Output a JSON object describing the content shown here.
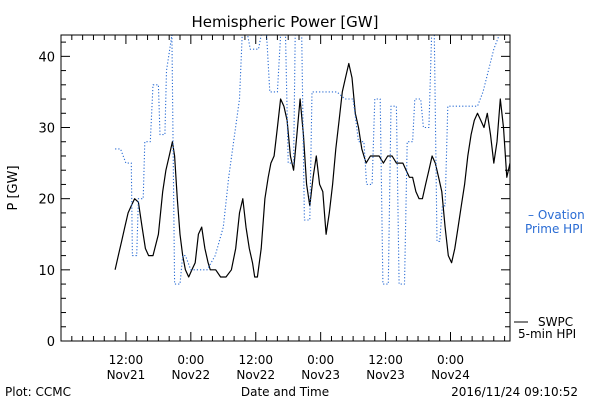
{
  "chart_data": {
    "type": "line",
    "title": "Hemispheric Power [GW]",
    "ylabel": "P [GW]",
    "xlabel": "Date and Time",
    "ylim": [
      0,
      43
    ],
    "yticks": [
      0,
      10,
      20,
      30,
      40
    ],
    "xlim_hours": [
      0,
      83
    ],
    "xticks": [
      {
        "hour": 12,
        "time": "12:00",
        "date": "Nov21"
      },
      {
        "hour": 24,
        "time": "0:00",
        "date": "Nov22"
      },
      {
        "hour": 36,
        "time": "12:00",
        "date": "Nov22"
      },
      {
        "hour": 48,
        "time": "0:00",
        "date": "Nov23"
      },
      {
        "hour": 60,
        "time": "12:00",
        "date": "Nov23"
      },
      {
        "hour": 72,
        "time": "0:00",
        "date": "Nov24"
      }
    ],
    "series": [
      {
        "name": "SWPC 5-min HPI",
        "legend": [
          "SWPC",
          "5-min HPI"
        ],
        "color": "#000000",
        "style": "solid",
        "x": [
          10,
          10.6,
          11.2,
          11.8,
          12.4,
          13,
          13.6,
          14.3,
          15,
          15.6,
          16.2,
          17,
          18,
          18.8,
          19.4,
          20,
          20.6,
          21,
          21.5,
          22,
          22.5,
          23,
          23.6,
          24.2,
          24.8,
          25.4,
          26,
          26.6,
          27.2,
          27.6,
          28,
          28.6,
          29.5,
          30.5,
          31.5,
          32.3,
          33,
          33.6,
          34.2,
          34.8,
          35.4,
          35.8,
          36.3,
          37,
          37.7,
          38.3,
          38.8,
          39.4,
          40,
          40.6,
          41.2,
          41.8,
          42.4,
          43,
          43.6,
          44.2,
          44.8,
          45.4,
          46,
          46.6,
          47.2,
          47.8,
          48.4,
          49,
          49.6,
          50.2,
          50.8,
          51.4,
          52,
          52.6,
          53.2,
          53.8,
          54.4,
          55,
          55.6,
          56.4,
          57.2,
          58,
          58.8,
          59.6,
          60.4,
          61.2,
          62,
          62.6,
          63.2,
          63.8,
          64.4,
          65,
          65.6,
          66.2,
          66.8,
          67.4,
          68,
          68.6,
          69.2,
          69.8,
          70.4,
          71,
          71.6,
          72.2,
          72.8,
          73.4,
          74,
          74.6,
          75.2,
          75.8,
          76.4,
          77,
          77.6,
          78.2,
          78.8,
          79.4,
          80,
          80.6,
          81.2,
          81.8,
          82.4,
          83
        ],
        "y": [
          10,
          12,
          14,
          16,
          18,
          19,
          20,
          19.5,
          16,
          13,
          12,
          12,
          15,
          21,
          24,
          26,
          28,
          26,
          20,
          15,
          12,
          10,
          9,
          10,
          11,
          15,
          16,
          13,
          11,
          10,
          10,
          10,
          9,
          9,
          10,
          13,
          18,
          20,
          16,
          13,
          11,
          9,
          9,
          13,
          20,
          23,
          25,
          26,
          30,
          34,
          33,
          31,
          26,
          24,
          29,
          34,
          29,
          22,
          19,
          23,
          26,
          22,
          21,
          15,
          18,
          22,
          27,
          31,
          35,
          37,
          39,
          37,
          32,
          30,
          27,
          25,
          26,
          26,
          26,
          25,
          26,
          26,
          25,
          25,
          25,
          24,
          23,
          23,
          21,
          20,
          20,
          22,
          24,
          26,
          25,
          23,
          21,
          16,
          12,
          11,
          13,
          16,
          19,
          22,
          26,
          29,
          31,
          32,
          31,
          30,
          32,
          29,
          25,
          28,
          34,
          30,
          23,
          25
        ],
        "y_clip": [
          [
            21.5,
            28
          ]
        ]
      },
      {
        "name": "Ovation Prime HPI",
        "legend": [
          "– Ovation",
          "Prime HPI"
        ],
        "color": "#2a6cd4",
        "style": "dotted",
        "x": [
          10,
          11,
          11.5,
          12,
          13,
          13.2,
          14,
          14.3,
          15.2,
          15.5,
          16.5,
          17,
          18,
          18.3,
          19.2,
          19.5,
          20.5,
          21,
          22,
          22.5,
          23,
          24,
          25,
          26,
          27,
          28.5,
          30,
          31,
          33,
          33.5,
          34.5,
          35,
          36.5,
          37,
          38,
          38.6,
          40,
          40.6,
          41.5,
          42,
          43,
          43.3,
          44.5,
          45,
          46,
          46.4,
          47.5,
          48,
          49,
          50,
          51,
          52.5,
          54,
          55,
          56,
          56.5,
          57.5,
          58,
          59,
          59.5,
          60.5,
          61,
          62,
          62.5,
          63.5,
          64,
          65,
          65.4,
          66.5,
          67,
          68,
          68.5,
          69,
          69.5,
          70,
          70.5,
          71,
          71.5,
          72,
          73,
          74,
          75,
          76,
          77,
          78,
          79,
          80,
          81,
          83
        ],
        "y": [
          27,
          27,
          26,
          25,
          25,
          12,
          12,
          20,
          20,
          28,
          28,
          36,
          36,
          29,
          29,
          38,
          43,
          8,
          8,
          12,
          12,
          10,
          10,
          10,
          10,
          12,
          16,
          23,
          34,
          43,
          43,
          41,
          41,
          43,
          43,
          35,
          35,
          43,
          43,
          25,
          25,
          43,
          43,
          17,
          17,
          35,
          35,
          35,
          35,
          35,
          35,
          34,
          34,
          28,
          28,
          22,
          22,
          34,
          34,
          8,
          8,
          33,
          33,
          8,
          8,
          28,
          28,
          34,
          34,
          30,
          30,
          43,
          43,
          14,
          14,
          19,
          19,
          33,
          33,
          33,
          33,
          33,
          33,
          33,
          35,
          38,
          41,
          43,
          43
        ]
      }
    ],
    "annotations": {
      "plot_credit": "Plot: CCMC",
      "timestamp": "2016/11/24 09:10:52"
    }
  }
}
